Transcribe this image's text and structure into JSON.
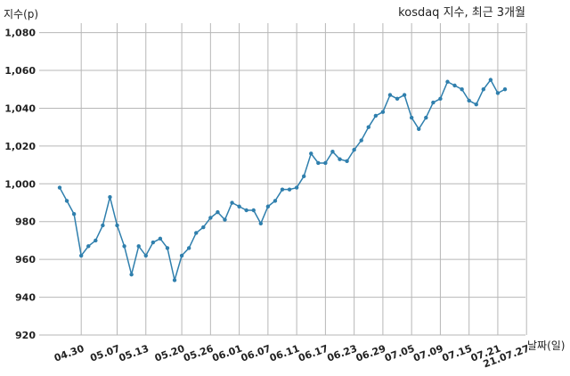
{
  "chart_data": {
    "type": "line",
    "title": "kosdaq 지수, 최근 3개월",
    "ylabel": "지수(p)",
    "xlabel": "날짜(일)",
    "ylim": [
      920,
      1085
    ],
    "yticks": [
      920,
      940,
      960,
      980,
      1000,
      1020,
      1040,
      1060,
      1080
    ],
    "ytick_labels": [
      "920",
      "940",
      "960",
      "980",
      "1,000",
      "1,020",
      "1,040",
      "1,060",
      "1,080"
    ],
    "xticks": [
      {
        "index": 3,
        "label": "04.30"
      },
      {
        "index": 8,
        "label": "05.07"
      },
      {
        "index": 12,
        "label": "05.13"
      },
      {
        "index": 17,
        "label": "05.20"
      },
      {
        "index": 21,
        "label": "05.26"
      },
      {
        "index": 25,
        "label": "06.01"
      },
      {
        "index": 29,
        "label": "06.07"
      },
      {
        "index": 33,
        "label": "06.11"
      },
      {
        "index": 37,
        "label": "06.17"
      },
      {
        "index": 41,
        "label": "06.23"
      },
      {
        "index": 45,
        "label": "06.29"
      },
      {
        "index": 49,
        "label": "07.05"
      },
      {
        "index": 53,
        "label": "07.09"
      },
      {
        "index": 57,
        "label": "07.15"
      },
      {
        "index": 61,
        "label": "07.21"
      },
      {
        "index": 65,
        "label": "21.07.27"
      }
    ],
    "grid": true,
    "series": [
      {
        "color": "#2f7fad",
        "values": [
          998,
          991,
          984,
          962,
          967,
          970,
          978,
          993,
          978,
          967,
          952,
          967,
          962,
          969,
          971,
          966,
          949,
          962,
          966,
          974,
          977,
          982,
          985,
          981,
          990,
          988,
          986,
          986,
          979,
          988,
          991,
          997,
          997,
          998,
          1004,
          1016,
          1011,
          1011,
          1017,
          1013,
          1012,
          1018,
          1023,
          1030,
          1036,
          1038,
          1047,
          1045,
          1047,
          1035,
          1029,
          1035,
          1043,
          1045,
          1054,
          1052,
          1050,
          1044,
          1042,
          1050,
          1055,
          1048,
          1050
        ]
      }
    ]
  }
}
